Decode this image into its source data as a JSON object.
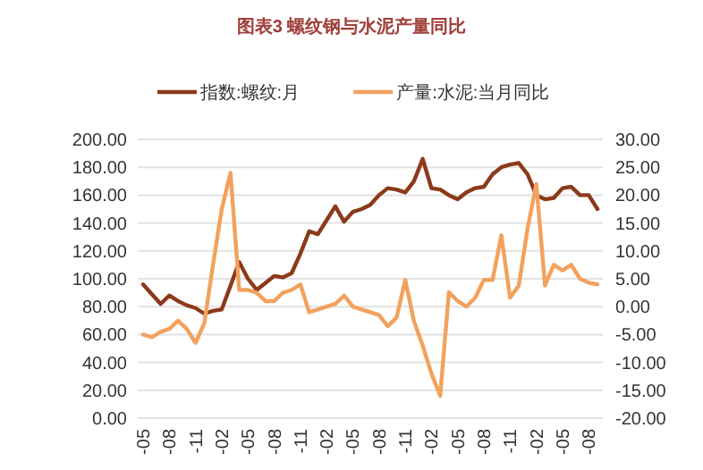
{
  "chart_data": {
    "type": "line",
    "title": "图表3 螺纹钢与水泥产量同比",
    "categories": [
      "-05",
      null,
      null,
      "-08",
      null,
      null,
      "-11",
      null,
      null,
      "-02",
      null,
      null,
      "-05",
      null,
      null,
      "-08",
      null,
      null,
      "-11",
      null,
      null,
      "-02",
      null,
      null,
      "-05",
      null,
      null,
      "-08",
      null,
      null,
      "-11",
      null,
      null,
      "-02",
      null,
      null,
      "-05",
      null,
      null,
      "-08",
      null,
      null,
      "-11",
      null,
      null,
      "-02",
      null,
      null,
      "-05",
      null,
      null,
      "-08",
      null
    ],
    "series": [
      {
        "name": "指数:螺纹:月",
        "color": "#8b3a1a",
        "values": [
          96,
          89,
          82,
          88,
          84,
          81,
          79,
          75,
          77,
          78,
          95,
          112,
          100,
          92,
          97,
          102,
          101,
          104,
          118,
          134,
          132,
          142,
          152,
          141,
          148,
          150,
          153,
          160,
          165,
          164,
          162,
          170,
          186,
          165,
          164,
          160,
          157,
          162,
          165,
          166,
          175,
          180,
          182,
          183,
          175,
          160,
          157,
          158,
          165,
          166,
          160,
          160,
          150
        ]
      },
      {
        "name": "产量:水泥:当月同比",
        "color": "#f2a25e",
        "axis": "y2",
        "values": [
          -5,
          -5.5,
          -4.5,
          -4,
          -2.5,
          -4,
          -6.5,
          -3,
          7.5,
          17.5,
          24,
          3,
          3,
          2.5,
          1,
          1,
          2.5,
          3,
          4,
          -1,
          -0.5,
          0,
          0.5,
          2,
          0,
          -0.5,
          -1,
          -1.5,
          -3.5,
          -2,
          4.8,
          -2.6,
          -7,
          -12,
          -16,
          2.6,
          1,
          0,
          1.6,
          4.8,
          4.8,
          12.8,
          1.6,
          3.8,
          14,
          22,
          3.8,
          7.5,
          6.5,
          7.5,
          5,
          4.3,
          4
        ]
      }
    ],
    "ylim": [
      0,
      200
    ],
    "yticks": [
      {
        "value": 0,
        "label": "0.00"
      },
      {
        "value": 20,
        "label": "20.00"
      },
      {
        "value": 40,
        "label": "40.00"
      },
      {
        "value": 60,
        "label": "60.00"
      },
      {
        "value": 80,
        "label": "80.00"
      },
      {
        "value": 100,
        "label": "100.00"
      },
      {
        "value": 120,
        "label": "120.00"
      },
      {
        "value": 140,
        "label": "140.00"
      },
      {
        "value": 160,
        "label": "160.00"
      },
      {
        "value": 180,
        "label": "180.00"
      },
      {
        "value": 200,
        "label": "200.00"
      }
    ],
    "y2lim": [
      -20,
      30
    ],
    "y2ticks": [
      {
        "value": -20,
        "label": "-20.00"
      },
      {
        "value": -15,
        "label": "-15.00"
      },
      {
        "value": -10,
        "label": "-10.00"
      },
      {
        "value": -5,
        "label": "-5.00"
      },
      {
        "value": 0,
        "label": "0.00"
      },
      {
        "value": 5,
        "label": "5.00"
      },
      {
        "value": 10,
        "label": "10.00"
      },
      {
        "value": 15,
        "label": "15.00"
      },
      {
        "value": 20,
        "label": "20.00"
      },
      {
        "value": 25,
        "label": "25.00"
      },
      {
        "value": 30,
        "label": "30.00"
      }
    ],
    "grid": "y",
    "legend": "top"
  }
}
